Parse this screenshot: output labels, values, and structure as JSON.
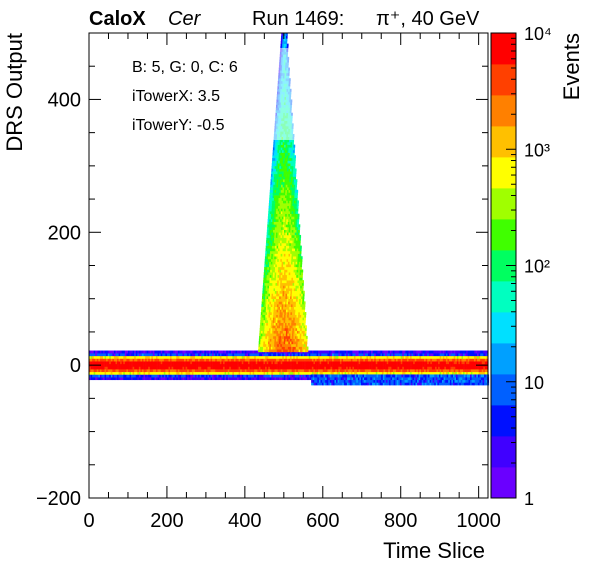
{
  "header": {
    "experiment": "CaloX",
    "channel": "Cer",
    "run": "Run 1469:",
    "beam": "π⁺, 40 GeV"
  },
  "info": {
    "line1": "B: 5, G: 0, C: 6",
    "line2": "iTowerX: 3.5",
    "line3": "iTowerY: -0.5"
  },
  "chart_data": {
    "type": "heatmap",
    "xlabel": "Time Slice",
    "ylabel": "DRS Output",
    "zlabel": "Events",
    "xlim": [
      0,
      1024
    ],
    "ylim": [
      -200,
      500
    ],
    "zlim": [
      1,
      10000
    ],
    "z_scale": "log",
    "x_ticks": [
      {
        "value": 0,
        "label": "0"
      },
      {
        "value": 200,
        "label": "200"
      },
      {
        "value": 400,
        "label": "400"
      },
      {
        "value": 600,
        "label": "600"
      },
      {
        "value": 800,
        "label": "800"
      },
      {
        "value": 1000,
        "label": "1000"
      }
    ],
    "y_ticks": [
      {
        "value": -200,
        "label": "−200"
      },
      {
        "value": 0,
        "label": "0"
      },
      {
        "value": 200,
        "label": "200"
      },
      {
        "value": 400,
        "label": "400"
      }
    ],
    "z_ticks": [
      {
        "value": 1,
        "label": "1"
      },
      {
        "value": 10,
        "label": "10"
      },
      {
        "value": 100,
        "label": "10²"
      },
      {
        "value": 1000,
        "label": "10³"
      },
      {
        "value": 10000,
        "label": "10⁴"
      }
    ],
    "features": {
      "baseline": {
        "y_center": 0,
        "y_halfwidth": 22,
        "x_range": [
          0,
          1024
        ],
        "peak_counts": 10000
      },
      "pulse": {
        "x_center": 500,
        "x_halfwidth_base": 60,
        "peak_y": 500,
        "peak_counts": 3000
      },
      "undershoot": {
        "x_range": [
          570,
          1024
        ],
        "y_range": [
          -30,
          -15
        ],
        "counts": 8
      }
    }
  },
  "colors": {
    "frame": "#000000",
    "background": "#ffffff",
    "palette": [
      "#6a00ff",
      "#4000ff",
      "#0010ff",
      "#0060ff",
      "#00a0ff",
      "#00e0ff",
      "#00ffc0",
      "#00ff60",
      "#40ff00",
      "#a0ff00",
      "#ffff00",
      "#ffc000",
      "#ff8000",
      "#ff4000",
      "#ff0000"
    ]
  }
}
